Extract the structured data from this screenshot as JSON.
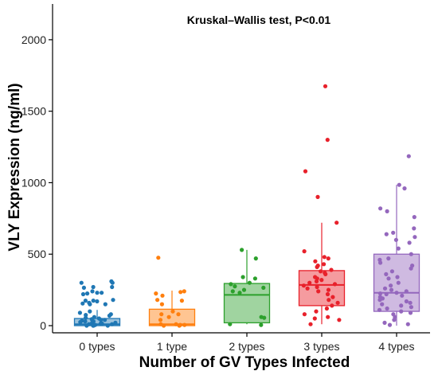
{
  "chart_data": {
    "type": "box",
    "annotation": "Kruskal–Wallis test, P<0.01",
    "xlabel": "Number of GV Types Infected",
    "ylabel": "VLY Expression (ng/ml)",
    "categories": [
      "0 types",
      "1 type",
      "2 types",
      "3 types",
      "4 types"
    ],
    "ylim": [
      -50,
      2250
    ],
    "yticks": [
      0,
      500,
      1000,
      1500,
      2000
    ],
    "grid": false,
    "legend": "none",
    "colors": {
      "0 types": "#1f77b4",
      "1 type": "#ff7f0e",
      "2 types": "#2ca02c",
      "3 types": "#e8212b",
      "4 types": "#9467bd"
    },
    "boxes": [
      {
        "category": "0 types",
        "whisker_low": 0,
        "q1": 0,
        "median": 10,
        "q3": 50,
        "whisker_high": 110
      },
      {
        "category": "1 type",
        "whisker_low": 0,
        "q1": 0,
        "median": 10,
        "q3": 115,
        "whisker_high": 245
      },
      {
        "category": "2 types",
        "whisker_low": 10,
        "q1": 20,
        "median": 215,
        "q3": 295,
        "whisker_high": 530
      },
      {
        "category": "3 types",
        "whisker_low": 10,
        "q1": 140,
        "median": 285,
        "q3": 385,
        "whisker_high": 720
      },
      {
        "category": "4 types",
        "whisker_low": 0,
        "q1": 100,
        "median": 230,
        "q3": 500,
        "whisker_high": 985
      }
    ],
    "points": [
      {
        "category": "0 types",
        "values": [
          310,
          300,
          300,
          270,
          270,
          265,
          240,
          230,
          230,
          225,
          220,
          180,
          175,
          175,
          170,
          160,
          155,
          150,
          150,
          100,
          90,
          80,
          75,
          70,
          60,
          55,
          50,
          45,
          40,
          40,
          35,
          30,
          30,
          25,
          20,
          20,
          15,
          15,
          10,
          10,
          5,
          5,
          5,
          0,
          0,
          0,
          0
        ]
      },
      {
        "category": "1 type",
        "values": [
          475,
          240,
          235,
          225,
          210,
          180,
          175,
          150,
          100,
          80,
          80,
          60,
          40,
          10,
          10,
          5,
          5,
          0,
          0
        ]
      },
      {
        "category": "2 types",
        "values": [
          530,
          470,
          340,
          330,
          300,
          290,
          275,
          265,
          250,
          240,
          230,
          60,
          55,
          10,
          5
        ]
      },
      {
        "category": "3 types",
        "values": [
          1675,
          1300,
          1080,
          900,
          720,
          520,
          480,
          470,
          450,
          430,
          420,
          410,
          390,
          380,
          370,
          360,
          340,
          330,
          320,
          310,
          300,
          290,
          280,
          270,
          260,
          250,
          240,
          220,
          200,
          180,
          160,
          140,
          120,
          100,
          80,
          60,
          50,
          40,
          10
        ]
      },
      {
        "category": "4 types",
        "values": [
          1185,
          985,
          960,
          820,
          800,
          760,
          680,
          650,
          640,
          620,
          600,
          580,
          540,
          500,
          470,
          460,
          440,
          420,
          400,
          380,
          360,
          340,
          330,
          300,
          280,
          260,
          250,
          240,
          230,
          225,
          220,
          210,
          200,
          190,
          180,
          170,
          160,
          150,
          140,
          130,
          120,
          110,
          100,
          90,
          80,
          60,
          40,
          20,
          10,
          5
        ]
      }
    ]
  }
}
